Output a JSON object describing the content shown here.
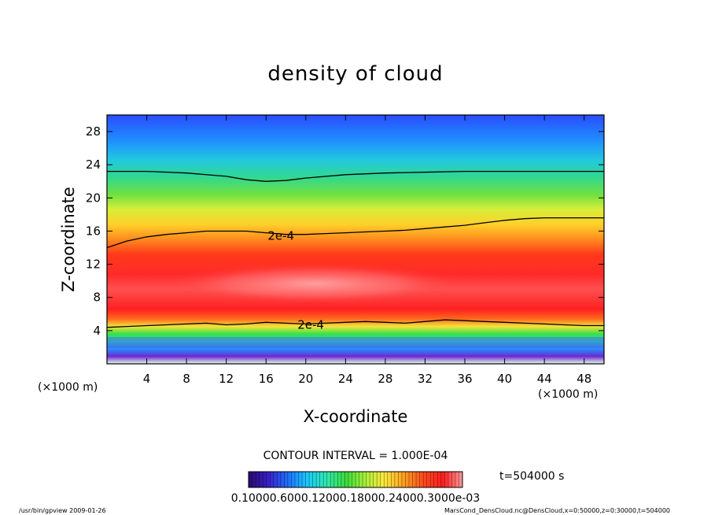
{
  "chart_data": {
    "type": "heatmap",
    "title": "density of cloud",
    "xlabel": "X-coordinate",
    "ylabel": "Z-coordinate",
    "x_unit_left": "(×1000 m)",
    "x_unit_right": "(×1000 m)",
    "xlim": [
      0,
      50
    ],
    "ylim": [
      0,
      30
    ],
    "x_ticks": [
      4,
      8,
      12,
      16,
      20,
      24,
      28,
      32,
      36,
      40,
      44,
      48
    ],
    "y_ticks": [
      4,
      8,
      12,
      16,
      20,
      24,
      28
    ],
    "contour_labels": [
      {
        "text": "2e-4",
        "x": 17.5,
        "y": 15.5
      },
      {
        "text": "2e-4",
        "x": 20.5,
        "y": 4.8
      }
    ],
    "contour_upper": {
      "x": [
        0,
        2,
        4,
        6,
        8,
        10,
        12,
        14,
        16,
        18,
        20,
        22,
        24,
        26,
        28,
        30,
        32,
        34,
        36,
        38,
        40,
        42,
        44,
        46,
        48,
        50
      ],
      "y": [
        14.0,
        14.8,
        15.3,
        15.6,
        15.8,
        16.0,
        16.0,
        16.0,
        15.8,
        15.6,
        15.6,
        15.7,
        15.8,
        15.9,
        16.0,
        16.1,
        16.3,
        16.5,
        16.7,
        17.0,
        17.3,
        17.5,
        17.6,
        17.6,
        17.6,
        17.6
      ]
    },
    "contour_top": {
      "x": [
        0,
        4,
        8,
        12,
        14,
        16,
        18,
        20,
        24,
        28,
        32,
        36,
        40,
        44,
        48,
        50
      ],
      "y": [
        23.2,
        23.2,
        23.0,
        22.6,
        22.2,
        22.0,
        22.1,
        22.4,
        22.8,
        23.0,
        23.1,
        23.2,
        23.2,
        23.2,
        23.2,
        23.2
      ]
    },
    "contour_lower": {
      "x": [
        0,
        2,
        4,
        6,
        8,
        10,
        12,
        14,
        16,
        18,
        20,
        22,
        24,
        26,
        28,
        30,
        32,
        34,
        36,
        38,
        40,
        42,
        44,
        46,
        48,
        50
      ],
      "y": [
        4.4,
        4.5,
        4.6,
        4.7,
        4.8,
        4.9,
        4.7,
        4.8,
        5.0,
        4.9,
        4.8,
        4.9,
        5.0,
        5.1,
        5.0,
        4.9,
        5.1,
        5.3,
        5.2,
        5.1,
        5.0,
        4.9,
        4.8,
        4.7,
        4.6,
        4.6
      ]
    },
    "contour_interval_text": "CONTOUR INTERVAL = 1.000E-04",
    "time_text": "t=504000 s",
    "colorbar_labels": "0.10000.6000.12000.18000.24000.3000e-03",
    "colorbar_colors": [
      "#2a0a6e",
      "#3a1ec8",
      "#1f6dff",
      "#19c8ff",
      "#2ee8b0",
      "#3cdc3c",
      "#a8f03a",
      "#ffe83c",
      "#ffa020",
      "#ff4a1e",
      "#ff1e1e",
      "#ff9a9a"
    ]
  },
  "footer": {
    "left": "/usr/bin/gpview  2009-01-26",
    "right": "MarsCond_DensCloud.nc@DensCloud,x=0:50000,z=0:30000,t=504000"
  }
}
